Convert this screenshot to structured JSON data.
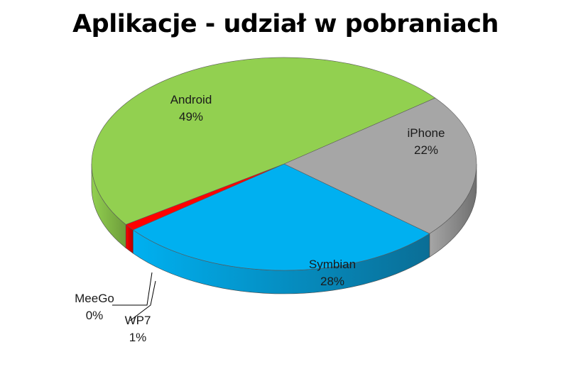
{
  "chart_data": {
    "type": "pie",
    "title": "Aplikacje - udział w pobraniach",
    "three_d": true,
    "legend": "none",
    "slices": [
      {
        "label": "Android",
        "value": 49,
        "value_label": "49%",
        "color": "#92D050",
        "side_color": "#6E9D3B"
      },
      {
        "label": "iPhone",
        "value": 22,
        "value_label": "22%",
        "color": "#A6A6A6",
        "side_color": "#6F6F6F"
      },
      {
        "label": "Symbian",
        "value": 28,
        "value_label": "28%",
        "color": "#00B0F0",
        "side_color": "#0A6E96"
      },
      {
        "label": "WP7",
        "value": 1,
        "value_label": "1%",
        "color": "#FF0000",
        "side_color": "#B00000"
      },
      {
        "label": "MeeGo",
        "value": 0,
        "value_label": "0%",
        "color": "#C0C0C0",
        "side_color": "#8A8A8A"
      }
    ]
  }
}
